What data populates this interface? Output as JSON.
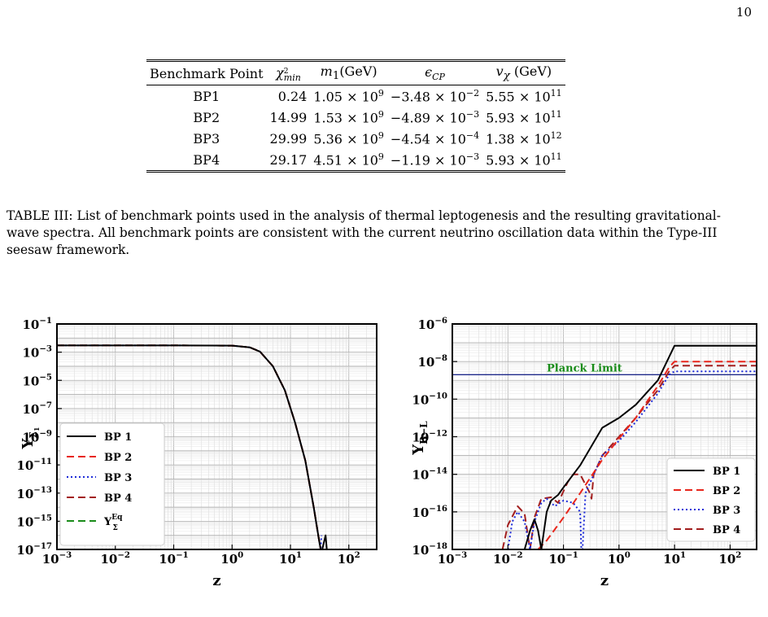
{
  "page_number": "10",
  "table": {
    "headers": [
      "Benchmark Point",
      "χ²_min",
      "m₁(GeV)",
      "ε_CP",
      "v_χ (GeV)"
    ],
    "rows": [
      [
        "BP1",
        "0.24",
        "1.05 × 10^9",
        "−3.48 × 10^−2",
        "5.55 × 10^11"
      ],
      [
        "BP2",
        "14.99",
        "1.53 × 10^9",
        "−4.89 × 10^−3",
        "5.93 × 10^11"
      ],
      [
        "BP3",
        "29.99",
        "5.36 × 10^9",
        "−4.54 × 10^−4",
        "1.38 × 10^12"
      ],
      [
        "BP4",
        "29.17",
        "4.51 × 10^9",
        "−1.19 × 10^−3",
        "5.93 × 10^11"
      ]
    ]
  },
  "caption": "TABLE III: List of benchmark points used in the analysis of thermal leptogenesis and the resulting gravitational-wave spectra. All benchmark points are consistent with the current neutrino oscillation data within the Type-III seesaw framework.",
  "chart_data": [
    {
      "type": "line",
      "xlabel": "z",
      "ylabel": "Y_Σ1",
      "xscale": "log",
      "yscale": "log",
      "xlim": [
        0.001,
        300
      ],
      "ylim": [
        1e-17,
        0.1
      ],
      "x_ticks": [
        "10^-3",
        "10^-2",
        "10^-1",
        "10^0",
        "10^1",
        "10^2"
      ],
      "y_ticks": [
        "10^-1",
        "10^-3",
        "10^-5",
        "10^-7",
        "10^-9",
        "10^-11",
        "10^-13",
        "10^-15",
        "10^-17"
      ],
      "grid": true,
      "legend_position": "bottom-left",
      "series": [
        {
          "name": "BP 1",
          "color": "#000000",
          "style": "solid",
          "x": [
            0.001,
            0.1,
            1,
            2,
            3,
            5,
            8,
            12,
            18,
            25,
            30,
            33,
            35,
            40,
            42
          ],
          "y": [
            0.003,
            0.003,
            0.0029,
            0.0022,
            0.0011,
            0.0001,
            2e-06,
            1e-08,
            2e-11,
            1e-14,
            1e-16,
            1e-17,
            1e-17,
            1e-16,
            1e-17
          ]
        },
        {
          "name": "BP 2",
          "color": "#e8261c",
          "style": "dashed",
          "x": [
            0.001,
            0.1,
            1,
            2,
            3,
            5,
            8,
            12,
            18,
            25,
            30,
            33
          ],
          "y": [
            0.003,
            0.003,
            0.0029,
            0.0022,
            0.0011,
            0.0001,
            2e-06,
            1e-08,
            2e-11,
            1e-14,
            1e-16,
            1e-17
          ]
        },
        {
          "name": "BP 3",
          "color": "#1d2bd8",
          "style": "dotted",
          "x": [
            0.001,
            0.1,
            1,
            2,
            3,
            5,
            8,
            12,
            18,
            25,
            30,
            33,
            34
          ],
          "y": [
            0.003,
            0.003,
            0.0029,
            0.0022,
            0.0011,
            0.0001,
            2e-06,
            1e-08,
            2e-11,
            1e-14,
            1e-16,
            1e-17,
            1e-16
          ]
        },
        {
          "name": "BP 4",
          "color": "#a21e1e",
          "style": "dashed",
          "x": [
            0.001,
            0.1,
            1,
            2,
            3,
            5,
            8,
            12,
            18,
            25,
            30,
            33
          ],
          "y": [
            0.003,
            0.003,
            0.0029,
            0.0022,
            0.0011,
            0.0001,
            2e-06,
            1e-08,
            2e-11,
            1e-14,
            1e-16,
            1e-17
          ]
        },
        {
          "name": "Y_Σ^Eq",
          "color": "#1a8c1a",
          "style": "dashed",
          "x": [
            0.001,
            0.1,
            1,
            2,
            3,
            5,
            8,
            12,
            18,
            25,
            30,
            33
          ],
          "y": [
            0.003,
            0.003,
            0.0029,
            0.0022,
            0.0011,
            0.0001,
            2e-06,
            1e-08,
            2e-11,
            1e-14,
            1e-16,
            1e-17
          ]
        }
      ]
    },
    {
      "type": "line",
      "xlabel": "z",
      "ylabel": "Y_B−L",
      "xscale": "log",
      "yscale": "log",
      "xlim": [
        0.001,
        300
      ],
      "ylim": [
        1e-18,
        1e-06
      ],
      "x_ticks": [
        "10^-3",
        "10^-2",
        "10^-1",
        "10^0",
        "10^1",
        "10^2"
      ],
      "y_ticks": [
        "10^-6",
        "10^-8",
        "10^-10",
        "10^-12",
        "10^-14",
        "10^-16",
        "10^-18"
      ],
      "grid": true,
      "legend_position": "bottom-right",
      "annotations": [
        {
          "text": "Planck Limit",
          "value": 2e-09,
          "color": "#1a8c1a"
        }
      ],
      "planck_limit_line": {
        "y": 2e-09,
        "color": "#1f2a8a"
      },
      "series": [
        {
          "name": "BP 1",
          "color": "#000000",
          "style": "solid",
          "x": [
            0.001,
            0.015,
            0.02,
            0.025,
            0.03,
            0.035,
            0.04,
            0.05,
            0.06,
            0.08,
            0.1,
            0.2,
            0.5,
            1,
            2,
            5,
            10,
            300
          ],
          "y": [
            1e-18,
            1e-18,
            1e-18,
            1e-17,
            4e-17,
            1e-17,
            1e-18,
            1e-16,
            4e-16,
            8e-16,
            2e-15,
            3e-14,
            3e-12,
            1e-11,
            5e-11,
            1e-09,
            7e-08,
            7e-08
          ]
        },
        {
          "name": "BP 2",
          "color": "#e8261c",
          "style": "dashed",
          "x": [
            0.035,
            0.05,
            0.1,
            0.2,
            0.5,
            1,
            2,
            5,
            8,
            10,
            300
          ],
          "y": [
            1e-18,
            3e-18,
            5e-17,
            1e-15,
            6e-14,
            8e-13,
            1e-11,
            5e-10,
            5e-09,
            1e-08,
            1e-08
          ]
        },
        {
          "name": "BP 3",
          "color": "#1d2bd8",
          "style": "dotted",
          "x": [
            0.01,
            0.012,
            0.015,
            0.02,
            0.025,
            0.03,
            0.04,
            0.05,
            0.07,
            0.1,
            0.15,
            0.2,
            0.21,
            0.22,
            0.25,
            0.5,
            1,
            2,
            5,
            8,
            10,
            300
          ],
          "y": [
            1e-18,
            3e-17,
            1e-16,
            3e-17,
            1e-18,
            3e-17,
            3e-16,
            5e-16,
            2e-16,
            4e-16,
            3e-16,
            1e-16,
            1e-18,
            1e-18,
            1e-15,
            1e-13,
            6e-13,
            6e-12,
            2e-10,
            2e-09,
            3e-09,
            3e-09
          ]
        },
        {
          "name": "BP 4",
          "color": "#a21e1e",
          "style": "dashed",
          "x": [
            0.008,
            0.01,
            0.015,
            0.02,
            0.025,
            0.03,
            0.04,
            0.06,
            0.08,
            0.12,
            0.15,
            0.2,
            0.3,
            0.32,
            0.35,
            0.5,
            1,
            2,
            5,
            8,
            10,
            300
          ],
          "y": [
            1e-18,
            2e-17,
            2e-16,
            8e-17,
            1e-18,
            5e-17,
            5e-16,
            6e-16,
            3e-16,
            4e-15,
            1e-14,
            1e-14,
            1e-15,
            5e-16,
            1e-14,
            1e-13,
            1e-12,
            1e-11,
            3e-10,
            3e-09,
            6e-09,
            6e-09
          ]
        }
      ]
    }
  ]
}
